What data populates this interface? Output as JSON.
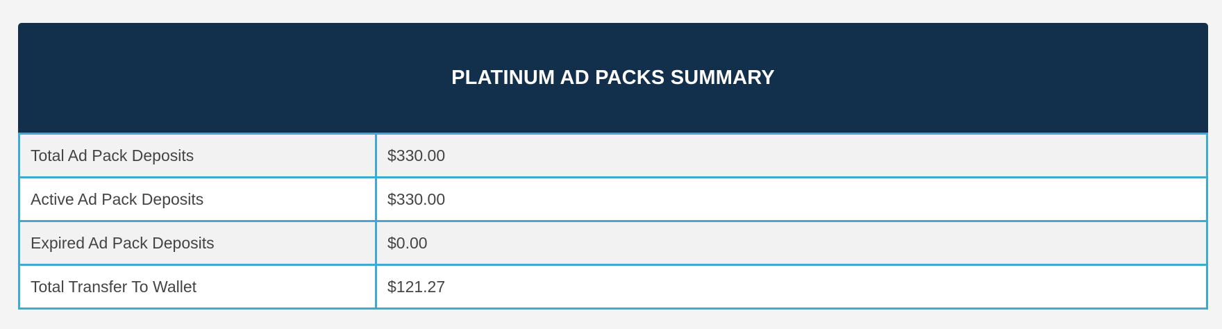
{
  "header": {
    "title": "PLATINUM AD PACKS SUMMARY"
  },
  "table": {
    "rows": [
      [
        "Total Ad Pack Deposits",
        "$330.00"
      ],
      [
        "Active Ad Pack Deposits",
        "$330.00"
      ],
      [
        "Expired Ad Pack Deposits",
        "$0.00"
      ],
      [
        "Total Transfer To Wallet",
        "$121.27"
      ]
    ]
  }
}
